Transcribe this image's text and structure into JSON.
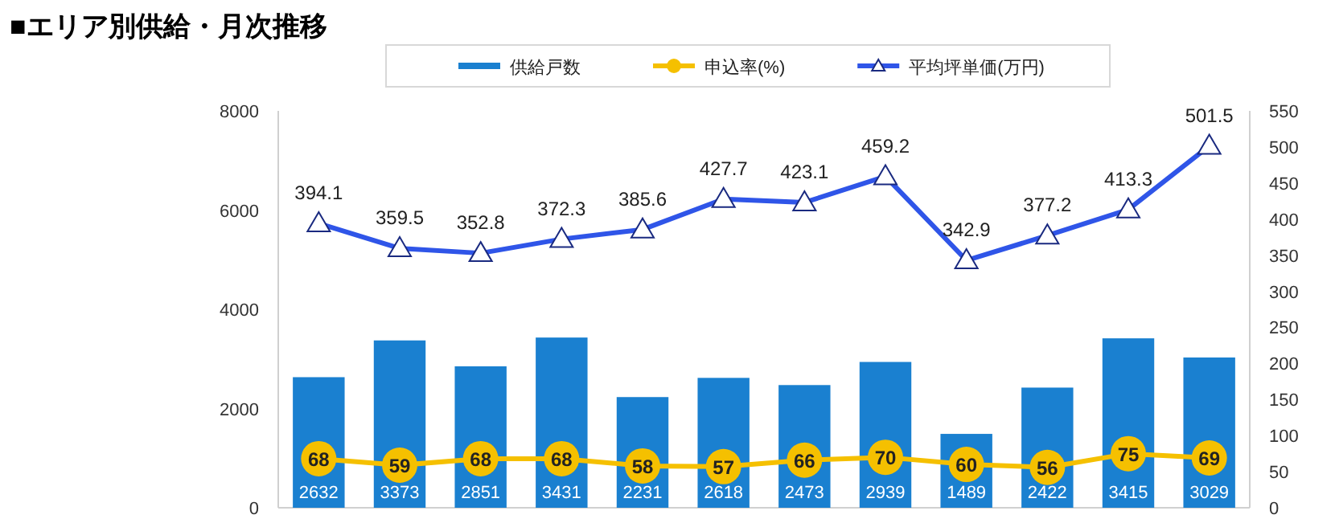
{
  "chart_data": {
    "type": "bar",
    "title": "■エリア別供給・月次推移",
    "categories": [
      null,
      null,
      null,
      null,
      null,
      null,
      null,
      null,
      null,
      null,
      null,
      null
    ],
    "series": [
      {
        "name": "供給戸数",
        "color": "#1a80d0",
        "values": [
          2632,
          3373,
          2851,
          3431,
          2231,
          2618,
          2473,
          2939,
          1489,
          2422,
          3415,
          3029
        ]
      },
      {
        "name": "申込率(%)",
        "type": "line",
        "axis": "y2",
        "marker": "circle",
        "color": "#f5c000",
        "values": [
          68,
          59,
          68,
          68,
          58,
          57,
          66,
          70,
          60,
          56,
          75,
          69
        ]
      },
      {
        "name": "平均坪単価(万円)",
        "type": "line",
        "axis": "y2",
        "marker": "triangle",
        "color": "#2f55e8",
        "values": [
          394.1,
          359.5,
          352.8,
          372.3,
          385.6,
          427.7,
          423.1,
          459.2,
          342.9,
          377.2,
          413.3,
          501.5
        ]
      }
    ],
    "ylim": [
      0,
      8000
    ],
    "yticks": [
      0,
      2000,
      4000,
      6000,
      8000
    ],
    "y2lim": [
      0,
      550
    ],
    "y2ticks": [
      0,
      50,
      100,
      150,
      200,
      250,
      300,
      350,
      400,
      450,
      500,
      550
    ],
    "data_labels": true,
    "legend": "top"
  }
}
